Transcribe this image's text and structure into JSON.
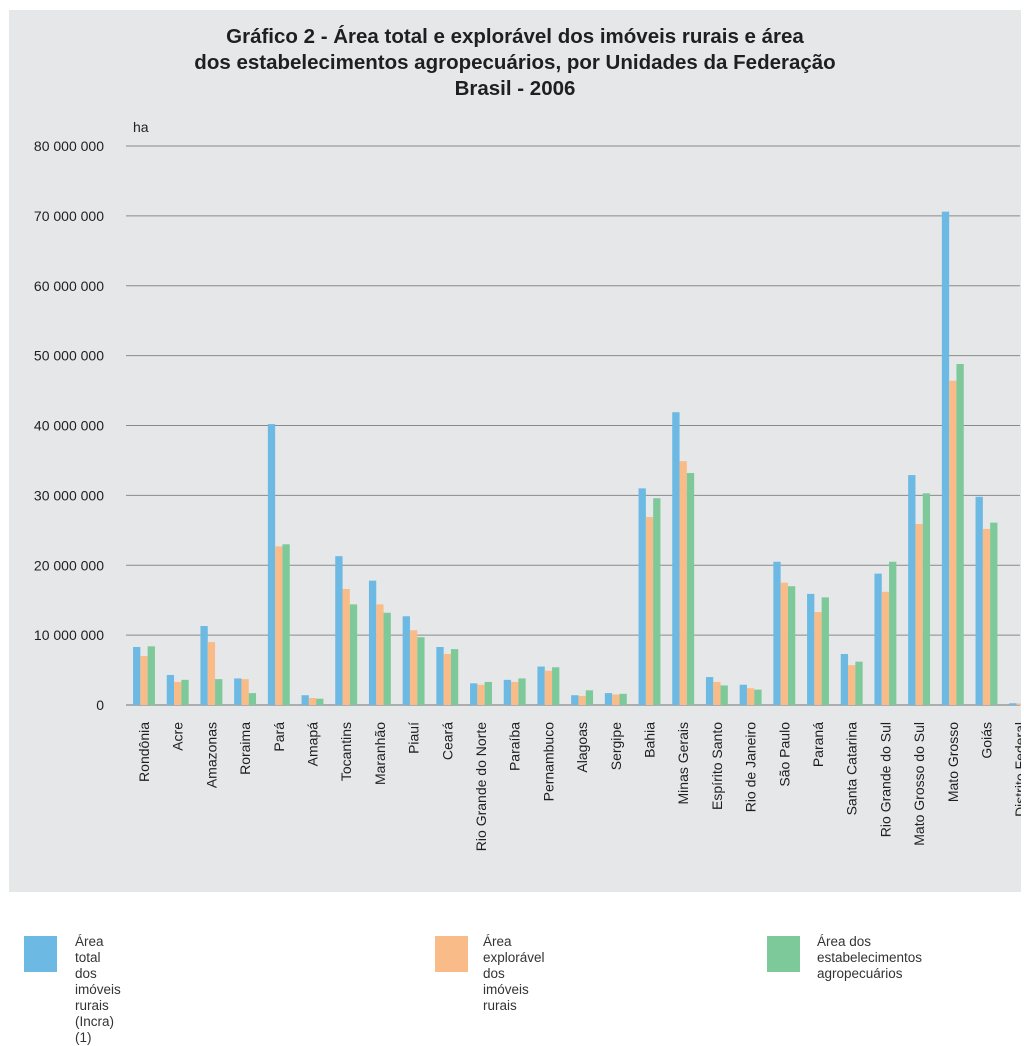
{
  "chart_data": {
    "type": "bar",
    "title_lines": [
      "Gráfico 2 - Área total e explorável dos imóveis rurais e área",
      "dos estabelecimentos agropecuários, por Unidades da Federação",
      "Brasil - 2006"
    ],
    "unit_label": "ha",
    "ylim": [
      0,
      80000000
    ],
    "y_ticks": [
      0,
      10000000,
      20000000,
      30000000,
      40000000,
      50000000,
      60000000,
      70000000,
      80000000
    ],
    "y_tick_labels": [
      "0",
      "10 000 000",
      "20 000 000",
      "30 000 000",
      "40 000 000",
      "50 000 000",
      "60 000 000",
      "70 000 000",
      "80 000 000"
    ],
    "grid": true,
    "legend_position": "bottom",
    "categories": [
      "Rondônia",
      "Acre",
      "Amazonas",
      "Roraima",
      "Pará",
      "Amapá",
      "Tocantins",
      "Maranhão",
      "Piauí",
      "Ceará",
      "Rio Grande do Norte",
      "Paraíba",
      "Pernambuco",
      "Alagoas",
      "Sergipe",
      "Bahia",
      "Minas Gerais",
      "Espírito Santo",
      "Rio de Janeiro",
      "São Paulo",
      "Paraná",
      "Santa Catarina",
      "Rio Grande do Sul",
      "Mato Grosso do Sul",
      "Mato Grosso",
      "Goiás",
      "Distrito Federal"
    ],
    "series": [
      {
        "name": "Área total dos imóveis rurais\n(Incra) (1)",
        "color": "#6cb9e3",
        "values": [
          8300000,
          4300000,
          11300000,
          3800000,
          40200000,
          1400000,
          21300000,
          17800000,
          12700000,
          8300000,
          3100000,
          3600000,
          5500000,
          1400000,
          1700000,
          31000000,
          41900000,
          4000000,
          2900000,
          20500000,
          15900000,
          7300000,
          18800000,
          32900000,
          70600000,
          29800000,
          250000
        ]
      },
      {
        "name": "Área explorável\ndos imóveis rurais",
        "color": "#f9bb88",
        "values": [
          7000000,
          3300000,
          9000000,
          3700000,
          22700000,
          1000000,
          16600000,
          14400000,
          10700000,
          7300000,
          2900000,
          3300000,
          4900000,
          1300000,
          1500000,
          26900000,
          34900000,
          3300000,
          2400000,
          17500000,
          13300000,
          5700000,
          16200000,
          25900000,
          46400000,
          25200000,
          200000
        ]
      },
      {
        "name": "Área dos estabelecimentos\nagropecuários",
        "color": "#7ec999",
        "values": [
          8400000,
          3600000,
          3700000,
          1700000,
          23000000,
          900000,
          14400000,
          13200000,
          9700000,
          8000000,
          3300000,
          3800000,
          5400000,
          2100000,
          1600000,
          29600000,
          33200000,
          2800000,
          2200000,
          17000000,
          15400000,
          6200000,
          20500000,
          30300000,
          48800000,
          26100000,
          250000
        ]
      }
    ]
  }
}
